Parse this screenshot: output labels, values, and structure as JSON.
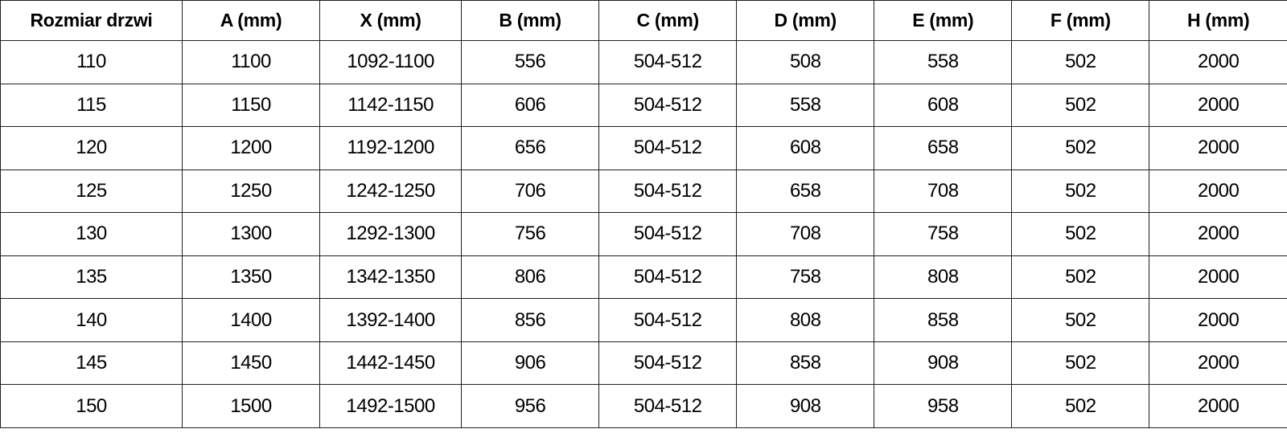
{
  "chart_data": {
    "type": "table",
    "columns": [
      "Rozmiar drzwi",
      "A (mm)",
      "X (mm)",
      "B (mm)",
      "C (mm)",
      "D (mm)",
      "E (mm)",
      "F (mm)",
      "H (mm)"
    ],
    "rows": [
      [
        "110",
        "1100",
        "1092-1100",
        "556",
        "504-512",
        "508",
        "558",
        "502",
        "2000"
      ],
      [
        "115",
        "1150",
        "1142-1150",
        "606",
        "504-512",
        "558",
        "608",
        "502",
        "2000"
      ],
      [
        "120",
        "1200",
        "1192-1200",
        "656",
        "504-512",
        "608",
        "658",
        "502",
        "2000"
      ],
      [
        "125",
        "1250",
        "1242-1250",
        "706",
        "504-512",
        "658",
        "708",
        "502",
        "2000"
      ],
      [
        "130",
        "1300",
        "1292-1300",
        "756",
        "504-512",
        "708",
        "758",
        "502",
        "2000"
      ],
      [
        "135",
        "1350",
        "1342-1350",
        "806",
        "504-512",
        "758",
        "808",
        "502",
        "2000"
      ],
      [
        "140",
        "1400",
        "1392-1400",
        "856",
        "504-512",
        "808",
        "858",
        "502",
        "2000"
      ],
      [
        "145",
        "1450",
        "1442-1450",
        "906",
        "504-512",
        "858",
        "908",
        "502",
        "2000"
      ],
      [
        "150",
        "1500",
        "1492-1500",
        "956",
        "504-512",
        "908",
        "958",
        "502",
        "2000"
      ]
    ],
    "layout": {
      "grid": true,
      "header_bold": true
    }
  },
  "colors": {
    "border": "#1f1f1f",
    "background": "#ffffff",
    "text": "#000000"
  }
}
